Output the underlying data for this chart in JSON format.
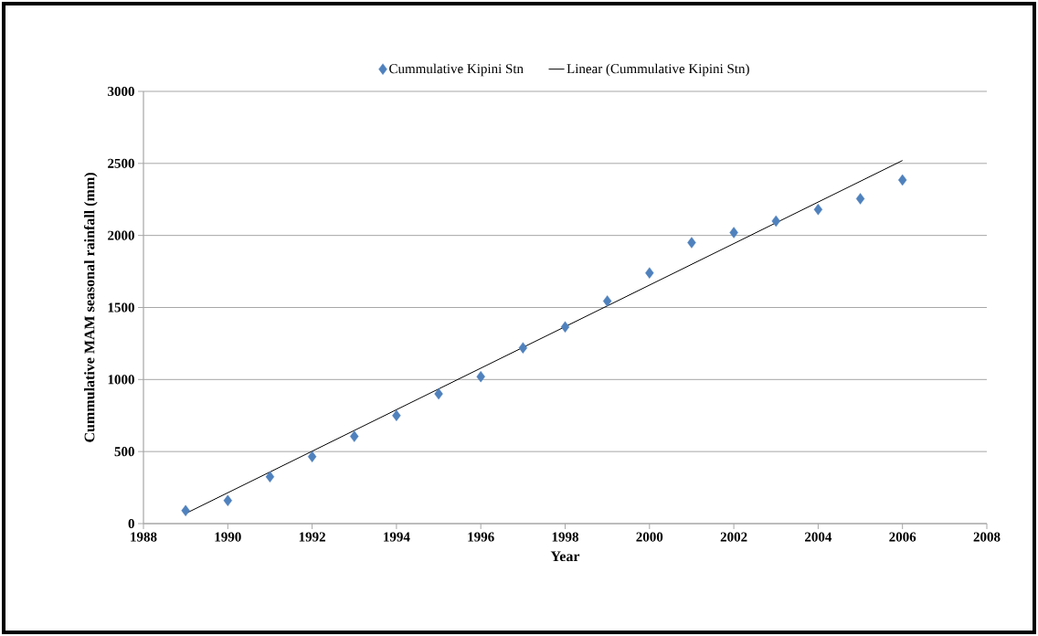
{
  "chart_data": {
    "type": "scatter",
    "xlabel": "Year",
    "ylabel": "Cummulative MAM seasonal rainfall (mm)",
    "xlim": [
      1988,
      2008
    ],
    "xticks": [
      1988,
      1990,
      1992,
      1994,
      1996,
      1998,
      2000,
      2002,
      2004,
      2006,
      2008
    ],
    "ylim": [
      0,
      3000
    ],
    "yticks": [
      0,
      500,
      1000,
      1500,
      2000,
      2500,
      3000
    ],
    "grid": "y",
    "legend": "top",
    "series": [
      {
        "name": "Cummulative Kipini Stn",
        "marker": "diamond",
        "color": "#4f81bd",
        "x": [
          1989,
          1990,
          1991,
          1992,
          1993,
          1994,
          1995,
          1996,
          1997,
          1998,
          1999,
          2000,
          2001,
          2002,
          2003,
          2004,
          2005,
          2006
        ],
        "values": [
          90,
          160,
          325,
          465,
          605,
          750,
          900,
          1020,
          1220,
          1365,
          1545,
          1740,
          1950,
          2020,
          2100,
          2180,
          2255,
          2385
        ]
      },
      {
        "name": "Linear (Cummulative Kipini Stn)",
        "type": "line",
        "marker": "none",
        "line_style": "solid",
        "color": "#000000",
        "x": [
          1989,
          2006
        ],
        "values": [
          70,
          2520
        ]
      }
    ]
  }
}
